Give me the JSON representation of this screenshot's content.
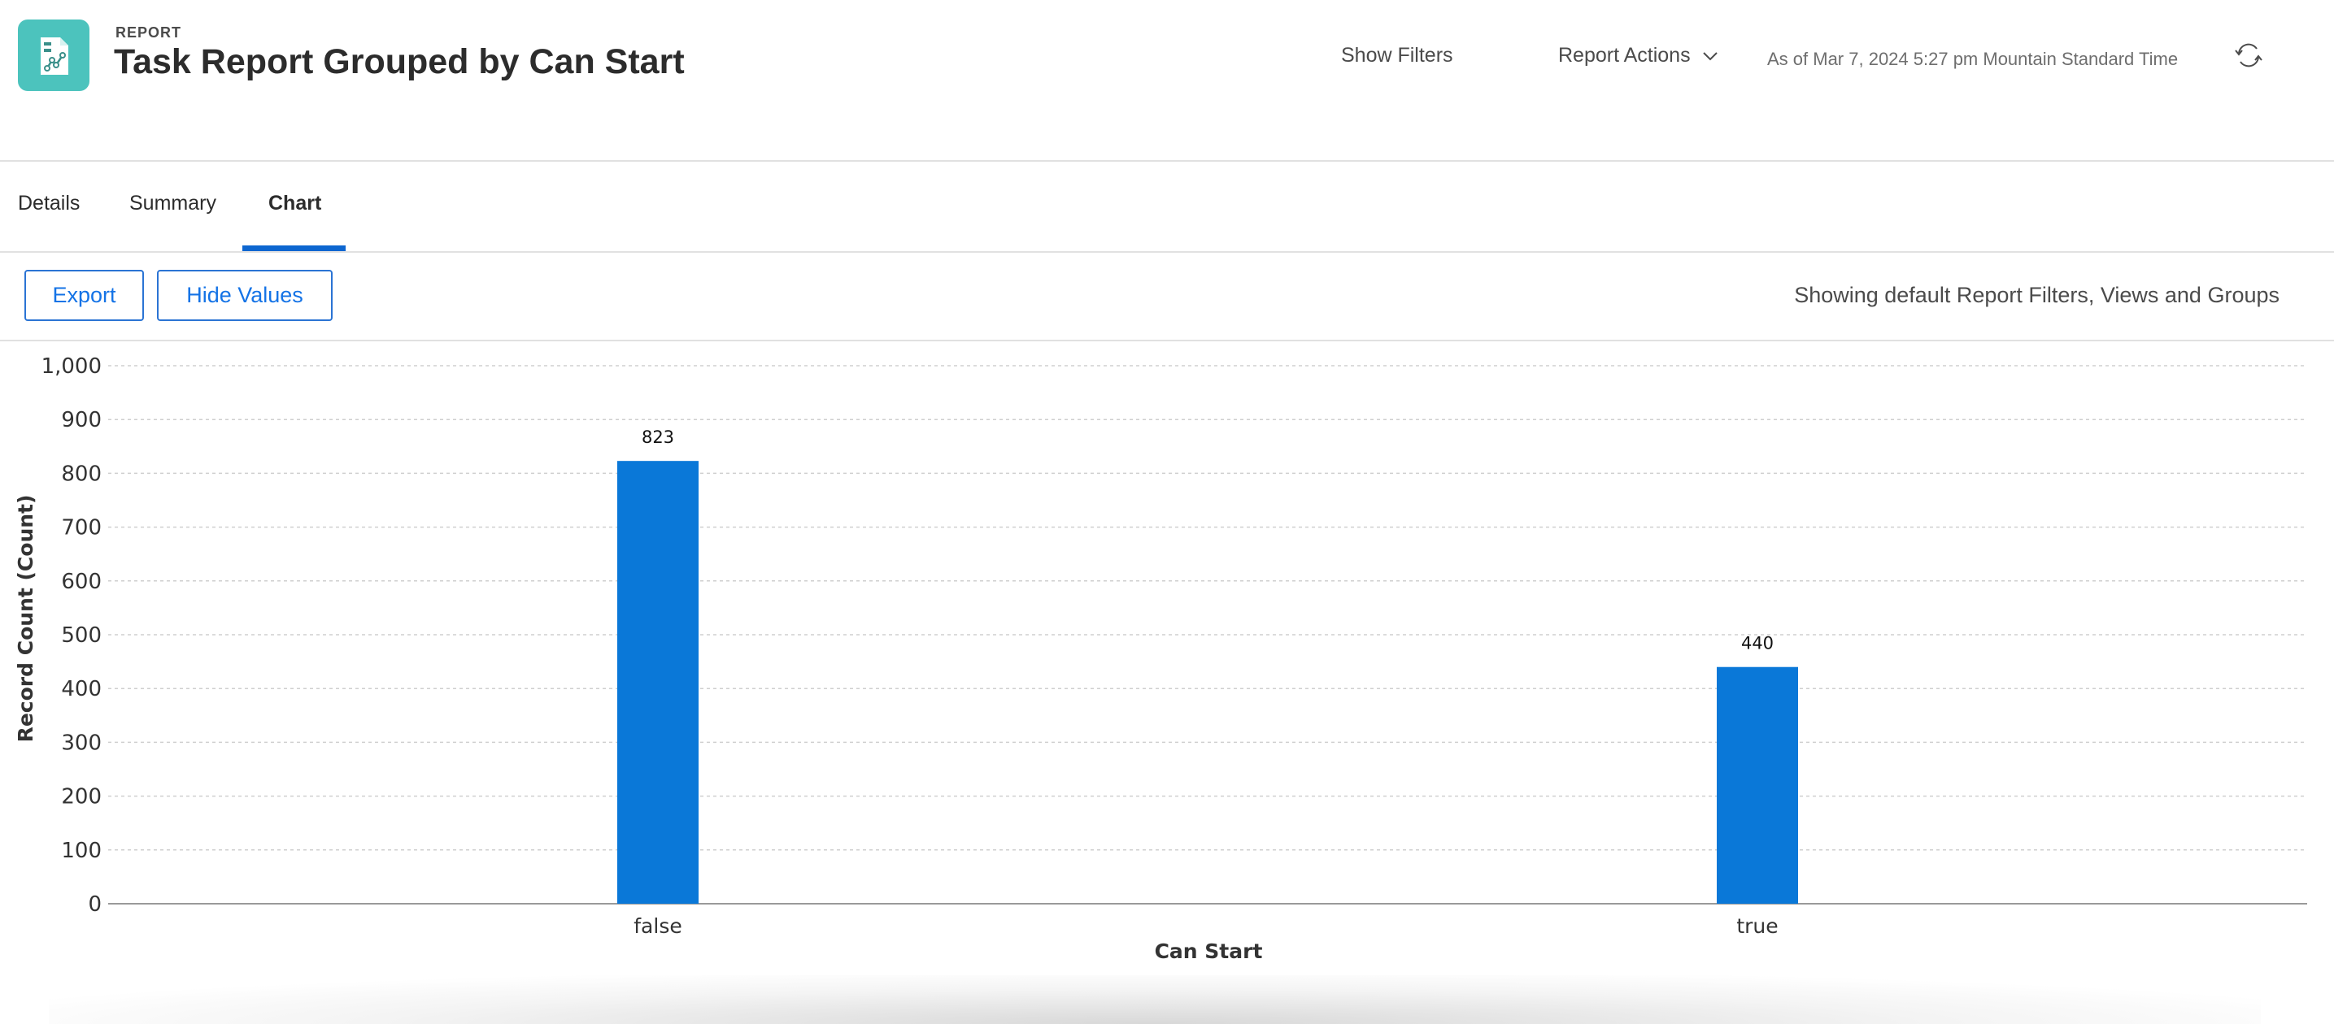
{
  "header": {
    "kicker": "REPORT",
    "title": "Task Report Grouped by Can Start",
    "show_filters": "Show Filters",
    "report_actions": "Report Actions",
    "as_of": "As of Mar 7, 2024 5:27 pm Mountain Standard Time"
  },
  "tabs": [
    {
      "label": "Details"
    },
    {
      "label": "Summary"
    },
    {
      "label": "Chart",
      "active": true
    }
  ],
  "toolbar": {
    "export": "Export",
    "hide_values": "Hide Values",
    "status": "Showing default Report Filters, Views and Groups"
  },
  "colors": {
    "accent": "#0d66d0",
    "bar": "#0a78d8",
    "icon_bg": "#4cc3bd"
  },
  "chart_data": {
    "type": "bar",
    "categories": [
      "false",
      "true"
    ],
    "values": [
      823,
      440
    ],
    "data_labels": [
      "823",
      "440"
    ],
    "xlabel": "Can Start",
    "ylabel": "Record Count (Count)",
    "ylim": [
      0,
      1000
    ],
    "yticks": [
      0,
      100,
      200,
      300,
      400,
      500,
      600,
      700,
      800,
      900,
      1000
    ],
    "ytick_labels": [
      "0",
      "100",
      "200",
      "300",
      "400",
      "500",
      "600",
      "700",
      "800",
      "900",
      "1,000"
    ],
    "grid": true,
    "legend": "none"
  }
}
